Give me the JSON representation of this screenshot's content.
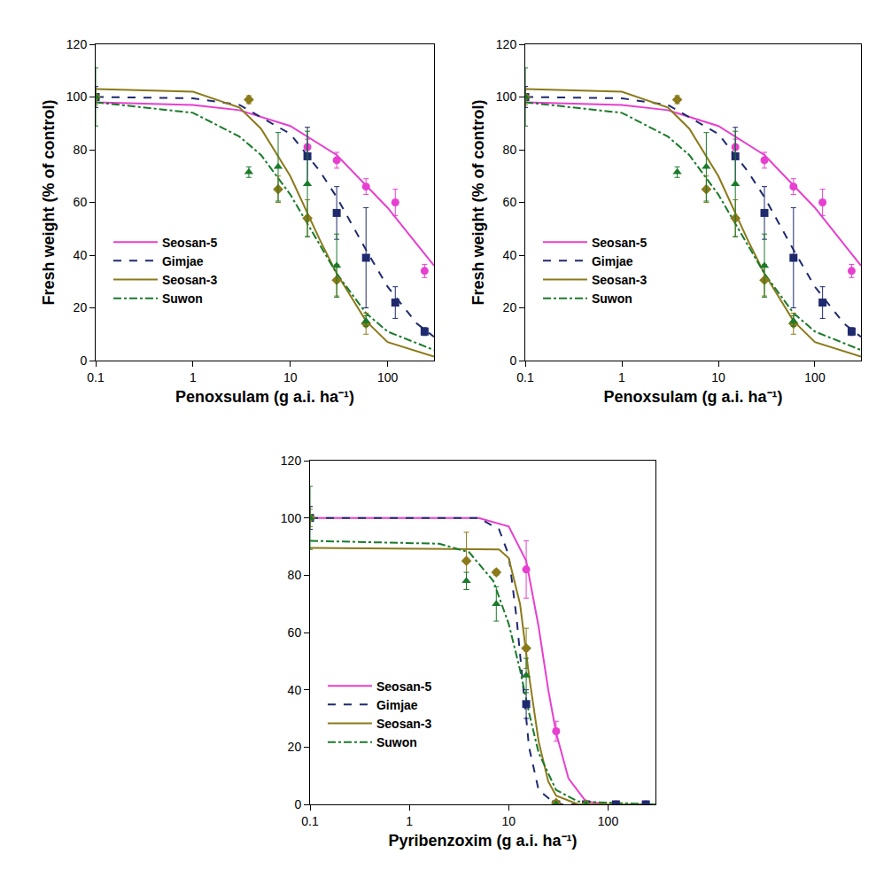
{
  "chart_data": [
    {
      "type": "scatter",
      "x_label": "Penoxsulam (g a.i. ha⁻¹)",
      "y_label": "Fresh weight (% of control)",
      "log": "x",
      "xlim": [
        0.1,
        300
      ],
      "xticks": [
        0.1,
        1,
        10,
        100
      ],
      "ylim": [
        0,
        120
      ],
      "yticks": [
        0,
        20,
        40,
        60,
        80,
        100,
        120
      ],
      "legend": "lower left",
      "grid": false,
      "series": [
        {
          "name": "Seosan-5",
          "color": "#e73fcf",
          "marker": "circle",
          "line_style": "solid",
          "x": [
            0.1,
            15,
            30,
            60,
            120,
            240
          ],
          "values": [
            100,
            81,
            76,
            66,
            60,
            34
          ],
          "error": [
            4,
            3,
            3,
            3,
            5,
            2.5
          ],
          "fit_x": [
            0.1,
            1,
            3,
            10,
            30,
            100,
            300
          ],
          "fit_values": [
            98,
            97,
            95,
            89,
            78,
            58,
            36
          ]
        },
        {
          "name": "Gimjae",
          "color": "#1f2a6e",
          "marker": "square",
          "line_style": "dash",
          "x": [
            0.1,
            15,
            30,
            60,
            120,
            240
          ],
          "values": [
            100,
            77.5,
            56,
            39,
            22,
            11
          ],
          "error": [
            4,
            11,
            10,
            19,
            6,
            1.5
          ],
          "fit_x": [
            0.1,
            1,
            3,
            10,
            20,
            30,
            60,
            100,
            200,
            300
          ],
          "fit_values": [
            100,
            99.5,
            97,
            86,
            72,
            62,
            42,
            28,
            14,
            9
          ]
        },
        {
          "name": "Seosan-3",
          "color": "#8b7a1a",
          "marker": "diamond",
          "line_style": "solid",
          "x": [
            0.1,
            3.75,
            7.5,
            15,
            30,
            60
          ],
          "values": [
            100,
            99,
            65,
            54,
            30.5,
            14
          ],
          "error": [
            3,
            1.5,
            5,
            7,
            6,
            4
          ],
          "fit_x": [
            0.1,
            1,
            3,
            5,
            10,
            20,
            30,
            60,
            100,
            300
          ],
          "fit_values": [
            103,
            102,
            96,
            88,
            70,
            46,
            33,
            15,
            7,
            1.5
          ]
        },
        {
          "name": "Suwon",
          "color": "#1a7a2a",
          "marker": "triangle-up",
          "line_style": "dashdot",
          "x": [
            0.1,
            3.75,
            7.5,
            15,
            30,
            60
          ],
          "values": [
            100,
            71.5,
            73.5,
            67,
            36,
            15
          ],
          "error": [
            11,
            2,
            13,
            20,
            12,
            2
          ],
          "fit_x": [
            0.1,
            1,
            3,
            5,
            10,
            20,
            30,
            60,
            100,
            300
          ],
          "fit_values": [
            98,
            94,
            85,
            78,
            63,
            44,
            33,
            18,
            11,
            4
          ]
        }
      ]
    },
    {
      "type": "scatter",
      "x_label": "Penoxsulam (g a.i. ha⁻¹)",
      "y_label": "Fresh weight (% of control)",
      "log": "x",
      "xlim": [
        0.1,
        300
      ],
      "xticks": [
        0.1,
        1,
        10,
        100
      ],
      "ylim": [
        0,
        120
      ],
      "yticks": [
        0,
        20,
        40,
        60,
        80,
        100,
        120
      ],
      "legend": "lower left",
      "grid": false,
      "series": [
        {
          "name": "Seosan-5",
          "color": "#e73fcf",
          "marker": "circle",
          "line_style": "solid",
          "x": [
            0.1,
            15,
            30,
            60,
            120,
            240
          ],
          "values": [
            100,
            81,
            76,
            66,
            60,
            34
          ],
          "error": [
            4,
            3,
            3,
            3,
            5,
            2.5
          ],
          "fit_x": [
            0.1,
            1,
            3,
            10,
            30,
            100,
            300
          ],
          "fit_values": [
            98,
            97,
            95,
            89,
            78,
            58,
            36
          ]
        },
        {
          "name": "Gimjae",
          "color": "#1f2a6e",
          "marker": "square",
          "line_style": "dash",
          "x": [
            0.1,
            15,
            30,
            60,
            120,
            240
          ],
          "values": [
            100,
            77.5,
            56,
            39,
            22,
            11
          ],
          "error": [
            4,
            11,
            10,
            19,
            6,
            1.5
          ],
          "fit_x": [
            0.1,
            1,
            3,
            10,
            20,
            30,
            60,
            100,
            200,
            300
          ],
          "fit_values": [
            100,
            99.5,
            97,
            86,
            72,
            62,
            42,
            28,
            14,
            9
          ]
        },
        {
          "name": "Seosan-3",
          "color": "#8b7a1a",
          "marker": "diamond",
          "line_style": "solid",
          "x": [
            0.1,
            3.75,
            7.5,
            15,
            30,
            60
          ],
          "values": [
            100,
            99,
            65,
            54,
            30.5,
            14
          ],
          "error": [
            3,
            1.5,
            5,
            7,
            6,
            4
          ],
          "fit_x": [
            0.1,
            1,
            3,
            5,
            10,
            20,
            30,
            60,
            100,
            300
          ],
          "fit_values": [
            103,
            102,
            96,
            88,
            70,
            46,
            33,
            15,
            7,
            1.5
          ]
        },
        {
          "name": "Suwon",
          "color": "#1a7a2a",
          "marker": "triangle-up",
          "line_style": "dashdot",
          "x": [
            0.1,
            3.75,
            7.5,
            15,
            30,
            60
          ],
          "values": [
            100,
            71.5,
            73.5,
            67,
            36,
            15
          ],
          "error": [
            11,
            2,
            13,
            20,
            12,
            2
          ],
          "fit_x": [
            0.1,
            1,
            3,
            5,
            10,
            20,
            30,
            60,
            100,
            300
          ],
          "fit_values": [
            98,
            94,
            85,
            78,
            63,
            44,
            33,
            18,
            11,
            4
          ]
        }
      ]
    },
    {
      "type": "scatter",
      "x_label": "Pyribenzoxim (g a.i. ha⁻¹)",
      "log": "x",
      "xlim": [
        0.1,
        300
      ],
      "xticks": [
        0.1,
        1,
        10,
        100
      ],
      "ylim": [
        0,
        120
      ],
      "yticks": [
        0,
        20,
        40,
        60,
        80,
        100,
        120
      ],
      "legend": "lower left",
      "grid": false,
      "series": [
        {
          "name": "Seosan-5",
          "color": "#e73fcf",
          "marker": "circle",
          "line_style": "solid",
          "x": [
            0.1,
            15,
            30,
            60,
            120,
            240
          ],
          "values": [
            100,
            82,
            25.5,
            0,
            0,
            0
          ],
          "error": [
            4,
            10,
            3.5,
            0,
            0,
            0
          ],
          "fit_x": [
            0.1,
            5,
            10,
            15,
            20,
            25,
            30,
            40,
            60,
            100,
            300
          ],
          "fit_values": [
            100,
            100,
            97,
            85,
            62,
            40,
            25,
            9,
            1,
            0,
            0
          ]
        },
        {
          "name": "Gimjae",
          "color": "#1f2a6e",
          "marker": "square",
          "line_style": "dash",
          "x": [
            0.1,
            15,
            30,
            60,
            120,
            240
          ],
          "values": [
            100,
            35,
            0,
            0,
            0,
            0
          ],
          "error": [
            4,
            5,
            0,
            0,
            0,
            0
          ],
          "fit_x": [
            0.1,
            5,
            8,
            10,
            12,
            14,
            16,
            20,
            30,
            300
          ],
          "fit_values": [
            100,
            100,
            96,
            87,
            65,
            40,
            20,
            5,
            0,
            0
          ]
        },
        {
          "name": "Seosan-3",
          "color": "#8b7a1a",
          "marker": "diamond",
          "line_style": "solid",
          "x": [
            0.1,
            3.75,
            7.5,
            15,
            30,
            60
          ],
          "values": [
            100,
            85,
            81,
            54.5,
            0.5,
            0
          ],
          "error": [
            3,
            10,
            1,
            7,
            0,
            0
          ],
          "fit_x": [
            0.1,
            8,
            10,
            13,
            16,
            20,
            25,
            30,
            50,
            300
          ],
          "fit_values": [
            89.5,
            89,
            86,
            70,
            45,
            22,
            8,
            3,
            0,
            0
          ]
        },
        {
          "name": "Suwon",
          "color": "#1a7a2a",
          "marker": "triangle-up",
          "line_style": "dashdot",
          "x": [
            0.1,
            3.75,
            7.5,
            15,
            30,
            60
          ],
          "values": [
            100,
            78,
            70,
            45,
            0,
            0
          ],
          "error": [
            11,
            3,
            6,
            6,
            0,
            0
          ],
          "fit_x": [
            0.1,
            2,
            4,
            7,
            10,
            13,
            16,
            20,
            30,
            50,
            300
          ],
          "fit_values": [
            92,
            91,
            88,
            78,
            63,
            47,
            32,
            18,
            5,
            1,
            0
          ]
        }
      ]
    }
  ]
}
